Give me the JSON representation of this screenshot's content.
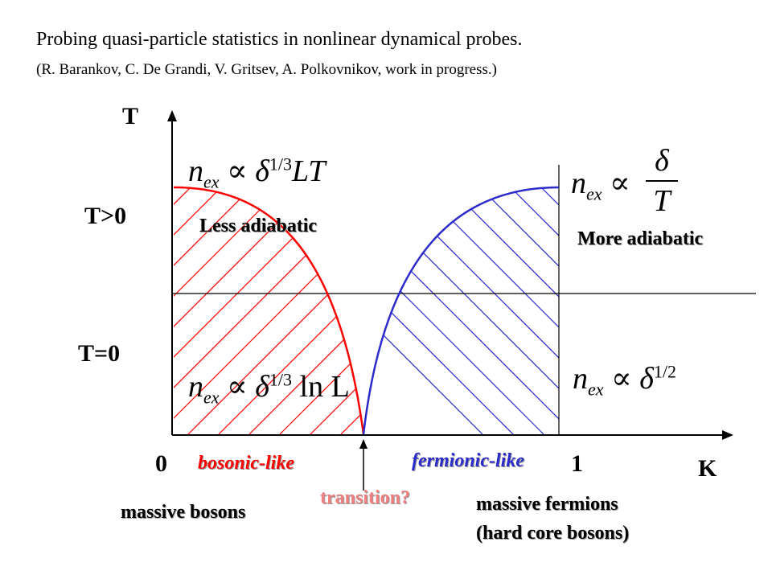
{
  "title": "Probing quasi-particle statistics in nonlinear dynamical probes.",
  "subtitle": "(R. Barankov, C. De Grandi, V. Gritsev, A. Polkovnikov, work in progress.)",
  "axes": {
    "y_label": "T",
    "x_label": "K",
    "x_tick_0": "0",
    "x_tick_1": "1"
  },
  "rows": {
    "upper": "T>0",
    "lower": "T=0"
  },
  "regions": {
    "left_upper": "Less adiabatic",
    "right_upper": "More adiabatic",
    "left_bottom": "bosonic-like",
    "right_bottom": "fermionic-like",
    "transition": "transition?"
  },
  "notes": {
    "left": "massive bosons",
    "right_line1": "massive fermions",
    "right_line2": "(hard core bosons)"
  },
  "formulas": {
    "top_left": {
      "base": "n",
      "sub": "ex",
      "rel": "∝",
      "rhs": "δ",
      "exp": "1/3",
      "tail": "LT"
    },
    "top_right": {
      "base": "n",
      "sub": "ex",
      "rel": "∝",
      "num": "δ",
      "den": "T"
    },
    "bottom_left": {
      "base": "n",
      "sub": "ex",
      "rel": "∝",
      "rhs": "δ",
      "exp": "1/3",
      "tail": "ln L"
    },
    "bottom_right": {
      "base": "n",
      "sub": "ex",
      "rel": "∝",
      "rhs": "δ",
      "exp": "1/2"
    }
  },
  "colors": {
    "bosonic": "#ff0000",
    "fermionic": "#2b2bcc",
    "transition": "#f08080",
    "label_shadow": "#9a9a9a"
  }
}
